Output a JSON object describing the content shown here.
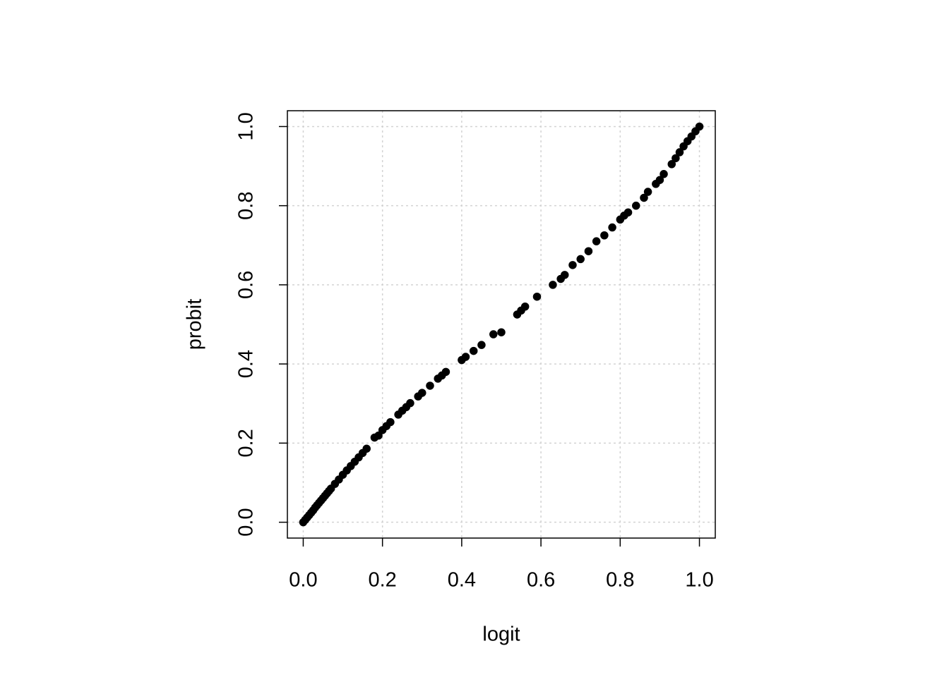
{
  "chart_data": {
    "type": "scatter",
    "x_label": "logit",
    "y_label": "probit",
    "xlim": [
      -0.04,
      1.04
    ],
    "ylim": [
      -0.04,
      1.04
    ],
    "xticks": [
      {
        "value": 0,
        "label": "0.0"
      },
      {
        "value": 0.2,
        "label": "0.2"
      },
      {
        "value": 0.4,
        "label": "0.4"
      },
      {
        "value": 0.6,
        "label": "0.6"
      },
      {
        "value": 0.8,
        "label": "0.8"
      },
      {
        "value": 1,
        "label": "1.0"
      }
    ],
    "yticks": [
      {
        "value": 0,
        "label": "0.0"
      },
      {
        "value": 0.2,
        "label": "0.2"
      },
      {
        "value": 0.4,
        "label": "0.4"
      },
      {
        "value": 0.6,
        "label": "0.6"
      },
      {
        "value": 0.8,
        "label": "0.8"
      },
      {
        "value": 1,
        "label": "1.0"
      }
    ],
    "grid": true,
    "color": "#000000",
    "x": [
      0,
      0.005,
      0.01,
      0.015,
      0.02,
      0.025,
      0.03,
      0.035,
      0.04,
      0.045,
      0.05,
      0.055,
      0.06,
      0.065,
      0.07,
      0.08,
      0.09,
      0.1,
      0.11,
      0.12,
      0.13,
      0.14,
      0.15,
      0.16,
      0.18,
      0.19,
      0.2,
      0.21,
      0.22,
      0.24,
      0.25,
      0.26,
      0.27,
      0.29,
      0.3,
      0.32,
      0.34,
      0.35,
      0.36,
      0.4,
      0.41,
      0.43,
      0.45,
      0.48,
      0.5,
      0.54,
      0.55,
      0.56,
      0.59,
      0.63,
      0.65,
      0.66,
      0.68,
      0.7,
      0.72,
      0.74,
      0.76,
      0.78,
      0.8,
      0.81,
      0.82,
      0.84,
      0.86,
      0.87,
      0.89,
      0.9,
      0.91,
      0.93,
      0.94,
      0.95,
      0.96,
      0.97,
      0.98,
      0.99,
      1.0
    ],
    "values": [
      0,
      0.006,
      0.012,
      0.018,
      0.024,
      0.03,
      0.037,
      0.043,
      0.049,
      0.055,
      0.061,
      0.067,
      0.073,
      0.079,
      0.085,
      0.097,
      0.108,
      0.12,
      0.131,
      0.142,
      0.153,
      0.164,
      0.175,
      0.186,
      0.214,
      0.219,
      0.233,
      0.243,
      0.253,
      0.272,
      0.282,
      0.291,
      0.301,
      0.318,
      0.327,
      0.345,
      0.363,
      0.371,
      0.38,
      0.41,
      0.418,
      0.433,
      0.448,
      0.475,
      0.48,
      0.525,
      0.535,
      0.545,
      0.57,
      0.6,
      0.615,
      0.625,
      0.65,
      0.665,
      0.685,
      0.71,
      0.725,
      0.745,
      0.765,
      0.775,
      0.783,
      0.8,
      0.82,
      0.835,
      0.855,
      0.865,
      0.88,
      0.905,
      0.92,
      0.935,
      0.95,
      0.963,
      0.975,
      0.988,
      1.0
    ]
  }
}
